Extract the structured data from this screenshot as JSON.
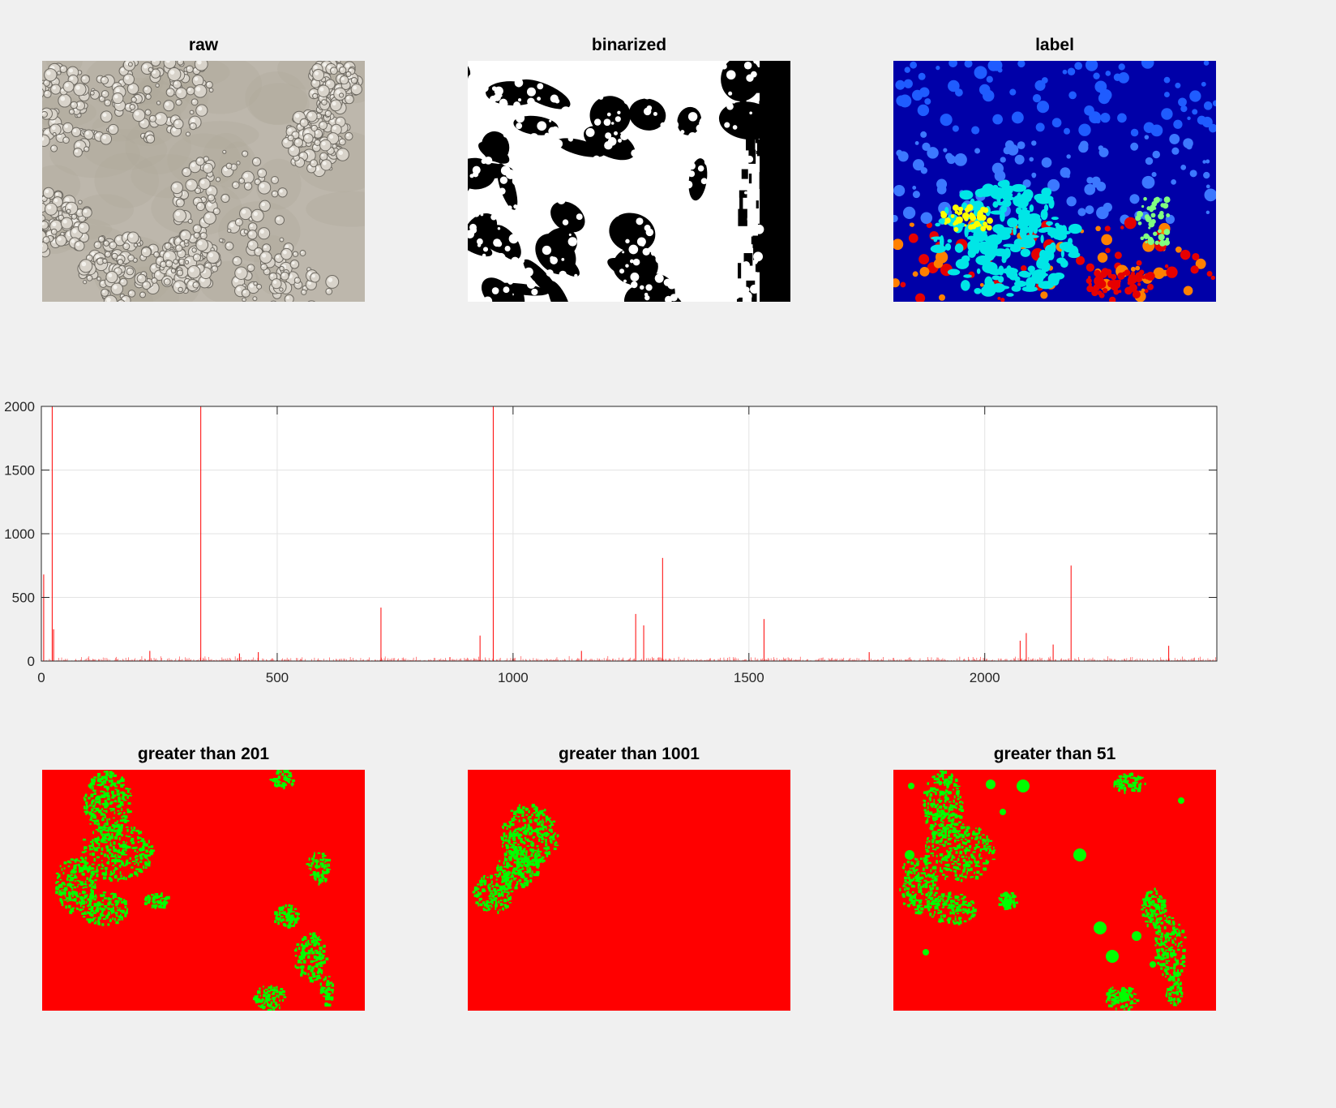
{
  "figure": {
    "panels_top": [
      {
        "title": "raw",
        "kind": "raw"
      },
      {
        "title": "binarized",
        "kind": "binarized"
      },
      {
        "title": "label",
        "kind": "label"
      }
    ],
    "panels_bottom": [
      {
        "title": "greater than 201",
        "kind": "mask201"
      },
      {
        "title": "greater than 1001",
        "kind": "mask1001"
      },
      {
        "title": "greater than 51",
        "kind": "mask51"
      }
    ],
    "mask_colors": {
      "background": "#ff0000",
      "foreground": "#00ff00"
    },
    "label_colors": {
      "background": "#0000a8",
      "mid": "#1f5cff",
      "cyan": "#00e6e6",
      "yellow": "#ffff00",
      "orange": "#ff8000",
      "red": "#e60000",
      "green": "#80ff80"
    }
  },
  "chart_data": {
    "type": "bar",
    "title": "",
    "xlabel": "",
    "ylabel": "",
    "xlim": [
      0,
      2492
    ],
    "ylim": [
      0,
      2000
    ],
    "xticks": [
      0,
      500,
      1000,
      1500,
      2000
    ],
    "xtick_labels": [
      "0",
      "500",
      "1000",
      "1500",
      "2000"
    ],
    "yticks": [
      0,
      500,
      1000,
      1500,
      2000
    ],
    "ytick_labels": [
      "0",
      "500",
      "1000",
      "1500",
      "2000"
    ],
    "grid": true,
    "bar_color": "#ff0000",
    "values": [
      {
        "x": 5,
        "y": 680
      },
      {
        "x": 23,
        "y": 2000
      },
      {
        "x": 26,
        "y": 250
      },
      {
        "x": 338,
        "y": 2000
      },
      {
        "x": 420,
        "y": 60
      },
      {
        "x": 460,
        "y": 70
      },
      {
        "x": 230,
        "y": 80
      },
      {
        "x": 720,
        "y": 420
      },
      {
        "x": 930,
        "y": 200
      },
      {
        "x": 958,
        "y": 2000
      },
      {
        "x": 1145,
        "y": 80
      },
      {
        "x": 1260,
        "y": 370
      },
      {
        "x": 1277,
        "y": 280
      },
      {
        "x": 1317,
        "y": 810
      },
      {
        "x": 1532,
        "y": 330
      },
      {
        "x": 1755,
        "y": 70
      },
      {
        "x": 2075,
        "y": 160
      },
      {
        "x": 2088,
        "y": 220
      },
      {
        "x": 2145,
        "y": 130
      },
      {
        "x": 2183,
        "y": 750
      },
      {
        "x": 2390,
        "y": 120
      }
    ]
  }
}
